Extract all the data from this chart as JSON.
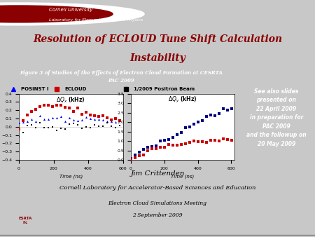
{
  "title_line1": "Resolution of ECLOUD Tune Shift Calculation",
  "title_line2": "Instability",
  "header_bg": "#8B0000",
  "header_text1": "Cornell University",
  "header_text2": "Laboratory for Elementary-Particle Physics",
  "fig_caption_line1": "Figure 3 of Studies of the Effects of Electron Cloud Formation at CESRTA",
  "fig_caption_line2": "PAC 2009",
  "fig_caption_bg": "#6B0000",
  "author": "Jim Crittenden",
  "institution": "Cornell Laboratory for Accelerator-Based Sciences and Education",
  "meeting": "Electron Cloud Simulations Meeting",
  "date": "2 September 2009",
  "sidebar_lines": [
    "See also slides",
    "presented on",
    "22 April 2009",
    "in preparation for",
    "PAC 2009",
    "and the followup on",
    "20 May 2009"
  ],
  "sidebar_bg": "#808080",
  "slide_bg": "#C8C8C8",
  "main_bg": "#FFFFFF",
  "legend1_labels": [
    "POSINST I",
    "ECLOUD"
  ],
  "legend1_colors": [
    "#0000CD",
    "#CC0000"
  ],
  "legend2_label": "1/2009 Positron Beam",
  "legend2_color": "#000000",
  "xlabel": "Time (ns)"
}
